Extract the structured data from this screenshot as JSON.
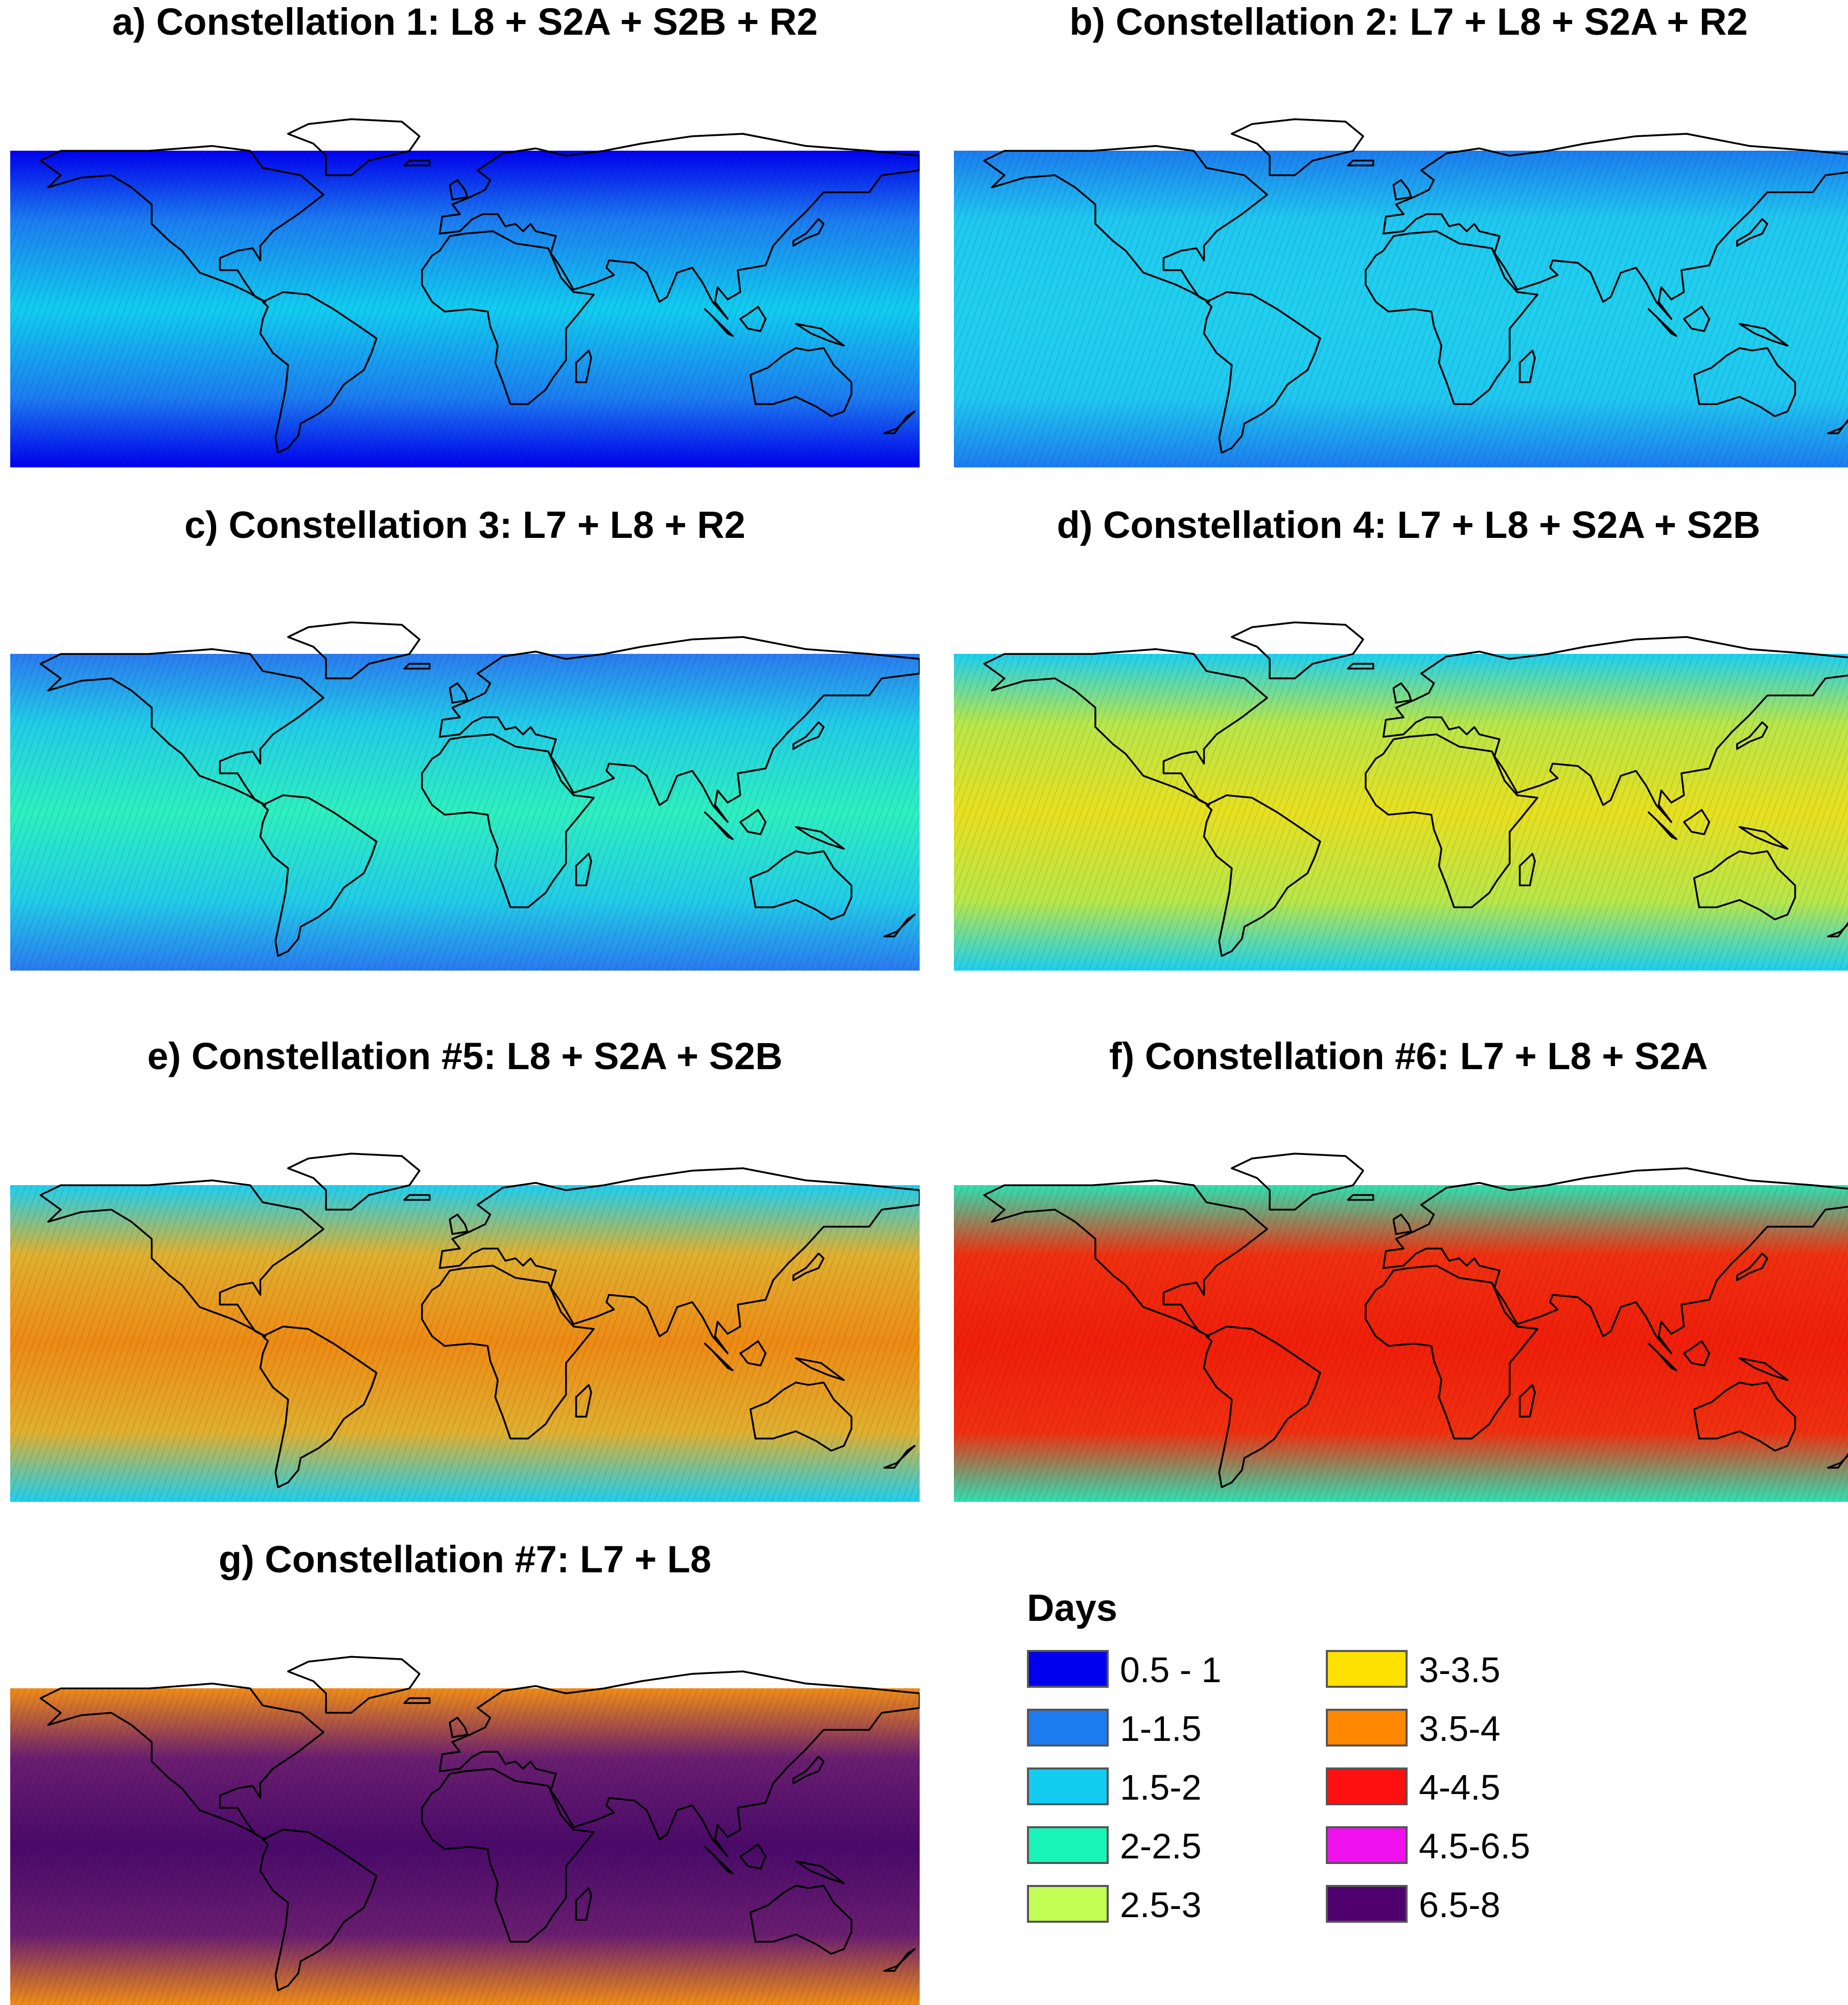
{
  "panels": [
    {
      "title": "a) Constellation 1: L8 + S2A + S2B + R2",
      "colors": [
        "#0000ee",
        "#1c7cf0",
        "#12cdf0",
        "#1c7cf0",
        "#0000ee"
      ]
    },
    {
      "title": "b) Constellation 2: L7 + L8 + S2A + R2",
      "colors": [
        "#1c7cf0",
        "#20c8f0",
        "#20d0ee",
        "#20c8f0",
        "#1c7cf0"
      ]
    },
    {
      "title": "c) Constellation 3: L7 + L8 + R2",
      "colors": [
        "#2a7af0",
        "#22cce8",
        "#2ef0c0",
        "#22cce8",
        "#2a7af0"
      ]
    },
    {
      "title": "d) Constellation 4: L7 + L8 + S2A + S2B",
      "colors": [
        "#1ecff0",
        "#b8e64a",
        "#e8e020",
        "#b8e64a",
        "#1ecff0"
      ]
    },
    {
      "title": "e) Constellation #5: L8 + S2A + S2B",
      "colors": [
        "#1ecff0",
        "#e0b030",
        "#ee8a14",
        "#e0b030",
        "#1ecff0"
      ]
    },
    {
      "title": "f) Constellation #6: L7 + L8 + S2A",
      "colors": [
        "#30e0b0",
        "#f03010",
        "#f01e0a",
        "#f03010",
        "#30e0b0"
      ]
    },
    {
      "title": "g) Constellation #7: L7 + L8",
      "colors": [
        "#f08c18",
        "#6a1e70",
        "#4a0a6a",
        "#6a1e70",
        "#f08c18"
      ]
    }
  ],
  "legend": {
    "title": "Days",
    "items": [
      {
        "label": "0.5 - 1",
        "color": "#0000ee"
      },
      {
        "label": "1-1.5",
        "color": "#1c7cf0"
      },
      {
        "label": "1.5-2",
        "color": "#12cdf0"
      },
      {
        "label": "2-2.5",
        "color": "#19f5b8"
      },
      {
        "label": "2.5-3",
        "color": "#c4ff55"
      },
      {
        "label": "3-3.5",
        "color": "#ffe100"
      },
      {
        "label": "3.5-4",
        "color": "#ff8800"
      },
      {
        "label": "4-4.5",
        "color": "#ff1010"
      },
      {
        "label": "4.5-6.5",
        "color": "#ee11ee"
      },
      {
        "label": "6.5-8",
        "color": "#50006e"
      }
    ]
  }
}
